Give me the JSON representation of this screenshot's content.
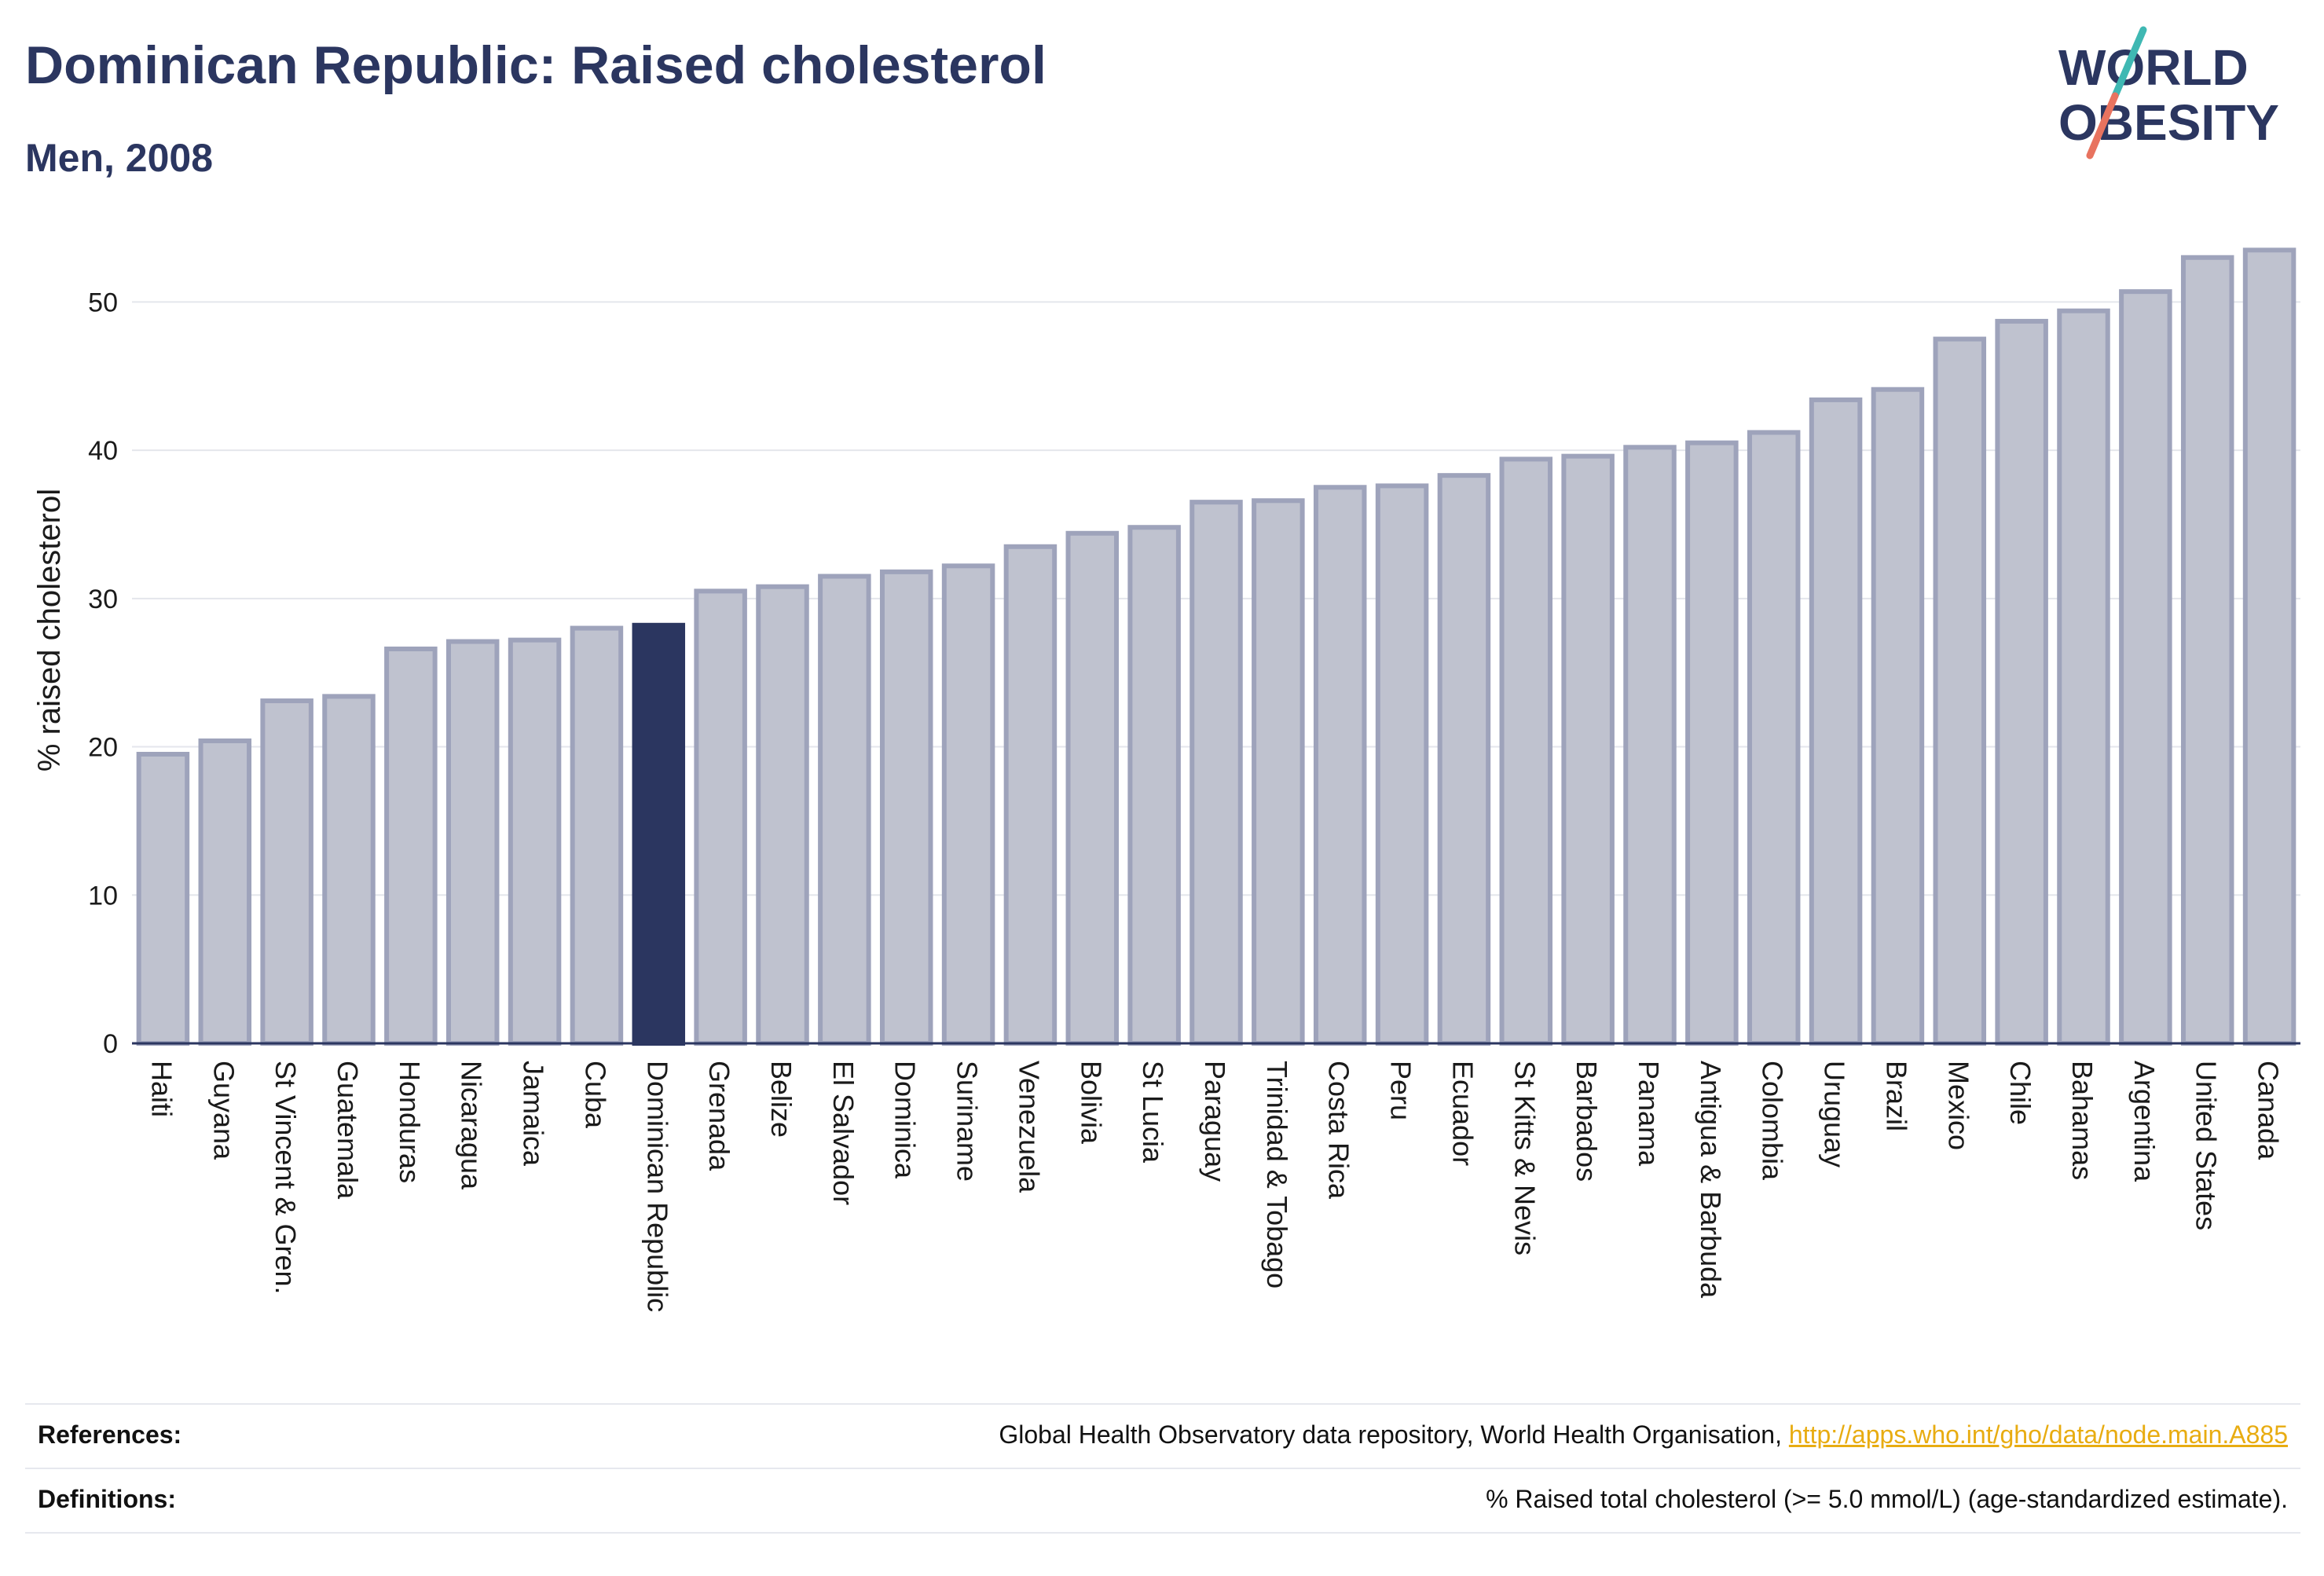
{
  "header": {
    "title": "Dominican Republic: Raised cholesterol",
    "subtitle": "Men, 2008"
  },
  "logo": {
    "line1": "WORLD",
    "line2": "OBESITY"
  },
  "footer": {
    "references_label": "References:",
    "references_text": "Global Health Observatory data repository, World Health Organisation, ",
    "references_link": "http://apps.who.int/gho/data/node.main.A885",
    "definitions_label": "Definitions:",
    "definitions_text": "% Raised total cholesterol (>= 5.0 mmol/L) (age-standardized estimate)."
  },
  "colors": {
    "highlight": "#2b3660",
    "bar_fill": "#bfc2cf",
    "bar_stroke": "#9ea3bb",
    "accent_teal": "#3fb8b3",
    "accent_coral": "#e8735f",
    "link": "#e8ac11"
  },
  "chart_data": {
    "type": "bar",
    "ylabel": "% raised cholesterol",
    "xlabel": "",
    "ylim": [
      0,
      55
    ],
    "yticks": [
      0,
      10,
      20,
      30,
      40,
      50
    ],
    "grid": true,
    "highlight": "Dominican Republic",
    "categories": [
      "Haiti",
      "Guyana",
      "St Vincent & Gren.",
      "Guatemala",
      "Honduras",
      "Nicaragua",
      "Jamaica",
      "Cuba",
      "Dominican Republic",
      "Grenada",
      "Belize",
      "El Salvador",
      "Dominica",
      "Suriname",
      "Venezuela",
      "Bolivia",
      "St Lucia",
      "Paraguay",
      "Trinidad & Tobago",
      "Costa Rica",
      "Peru",
      "Ecuador",
      "St Kitts & Nevis",
      "Barbados",
      "Panama",
      "Antigua & Barbuda",
      "Colombia",
      "Uruguay",
      "Brazil",
      "Mexico",
      "Chile",
      "Bahamas",
      "Argentina",
      "United States",
      "Canada"
    ],
    "values": [
      19.5,
      20.4,
      23.1,
      23.4,
      26.6,
      27.1,
      27.2,
      28.0,
      28.2,
      30.5,
      30.8,
      31.5,
      31.8,
      32.2,
      33.5,
      34.4,
      34.8,
      36.5,
      36.6,
      37.5,
      37.6,
      38.3,
      39.4,
      39.6,
      40.2,
      40.5,
      41.2,
      43.4,
      44.1,
      47.5,
      48.7,
      49.4,
      50.7,
      53.0,
      53.5
    ]
  }
}
